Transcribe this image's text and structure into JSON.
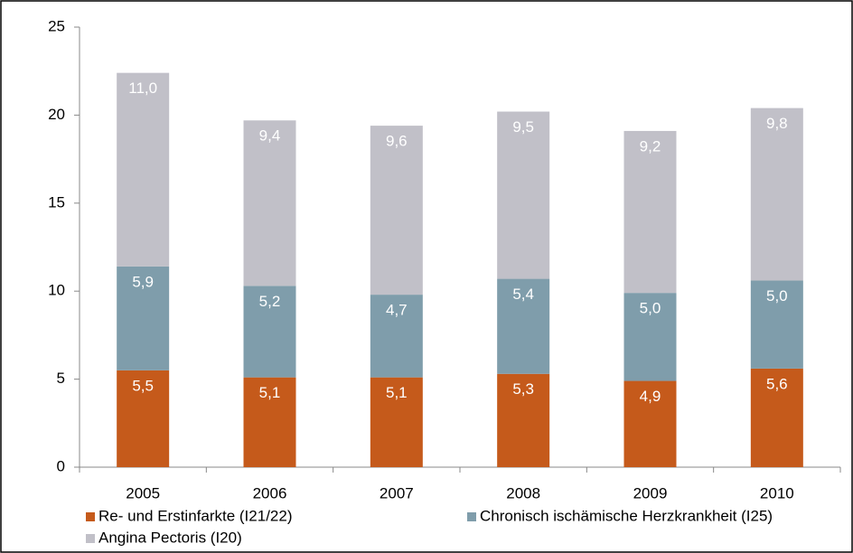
{
  "chart_data": {
    "type": "stacked_bar",
    "categories": [
      "2005",
      "2006",
      "2007",
      "2008",
      "2009",
      "2010"
    ],
    "series": [
      {
        "name": "Re- und Erstinfarkte (I21/22)",
        "color": "#c55a1b",
        "values": [
          5.5,
          5.1,
          5.1,
          5.3,
          4.9,
          5.6
        ],
        "value_labels": [
          "5,5",
          "5,1",
          "5,1",
          "5,3",
          "4,9",
          "5,6"
        ]
      },
      {
        "name": "Chronisch ischämische Herzkrankheit (I25)",
        "color": "#7f9dab",
        "values": [
          5.9,
          5.2,
          4.7,
          5.4,
          5.0,
          5.0
        ],
        "value_labels": [
          "5,9",
          "5,2",
          "4,7",
          "5,4",
          "5,0",
          "5,0"
        ]
      },
      {
        "name": "Angina Pectoris (I20)",
        "color": "#c1c0c8",
        "values": [
          11.0,
          9.4,
          9.6,
          9.5,
          9.2,
          9.8
        ],
        "value_labels": [
          "11,0",
          "9,4",
          "9,6",
          "9,5",
          "9,2",
          "9,8"
        ]
      }
    ],
    "ylim": [
      0,
      25
    ],
    "yticks": [
      0,
      5,
      10,
      15,
      20,
      25
    ],
    "grid": false,
    "legend": "bottom"
  }
}
